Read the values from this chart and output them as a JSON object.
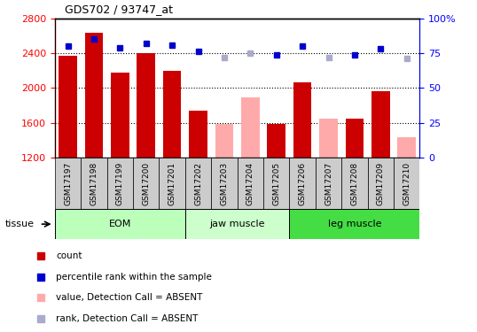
{
  "title": "GDS702 / 93747_at",
  "samples": [
    "GSM17197",
    "GSM17198",
    "GSM17199",
    "GSM17200",
    "GSM17201",
    "GSM17202",
    "GSM17203",
    "GSM17204",
    "GSM17205",
    "GSM17206",
    "GSM17207",
    "GSM17208",
    "GSM17209",
    "GSM17210"
  ],
  "bar_values": [
    2370,
    2630,
    2180,
    2400,
    2200,
    1740,
    null,
    null,
    1590,
    2060,
    null,
    1645,
    1960,
    null
  ],
  "bar_absent": [
    null,
    null,
    null,
    null,
    null,
    null,
    1590,
    1890,
    null,
    null,
    1645,
    null,
    null,
    1430
  ],
  "rank_present": [
    80,
    85,
    79,
    82,
    81,
    76,
    null,
    null,
    74,
    80,
    null,
    74,
    78,
    null
  ],
  "rank_absent": [
    null,
    null,
    null,
    null,
    null,
    null,
    72,
    75,
    null,
    null,
    72,
    null,
    null,
    71
  ],
  "bar_color_present": "#cc0000",
  "bar_color_absent": "#ffaaaa",
  "rank_color_present": "#0000cc",
  "rank_color_absent": "#aaaacc",
  "ylim_left": [
    1200,
    2800
  ],
  "ylim_right": [
    0,
    100
  ],
  "yticks_left": [
    1200,
    1600,
    2000,
    2400,
    2800
  ],
  "yticks_right": [
    0,
    25,
    50,
    75,
    100
  ],
  "hlines": [
    1600,
    2000,
    2400
  ],
  "groups": [
    {
      "label": "EOM",
      "start": 0,
      "end": 5,
      "color": "#bbffbb"
    },
    {
      "label": "jaw muscle",
      "start": 5,
      "end": 9,
      "color": "#ccffcc"
    },
    {
      "label": "leg muscle",
      "start": 9,
      "end": 14,
      "color": "#44dd44"
    }
  ],
  "tissue_label": "tissue",
  "xtick_bg": "#cccccc",
  "background_color": "#ffffff"
}
